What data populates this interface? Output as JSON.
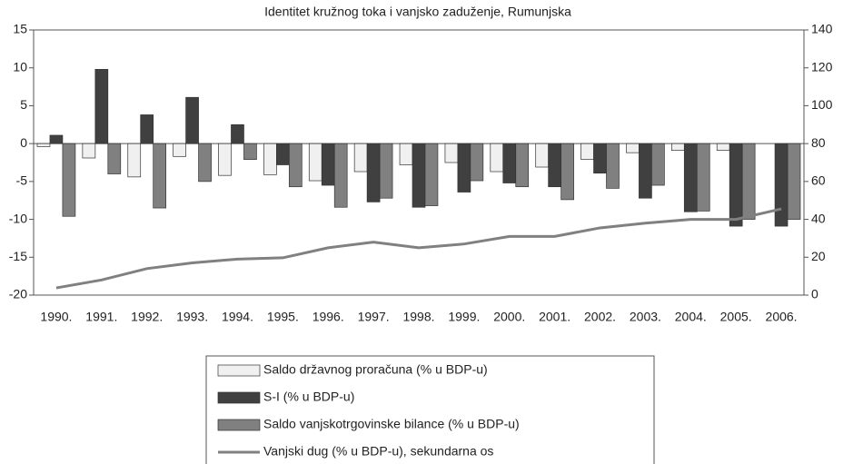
{
  "chart_data": {
    "type": "bar",
    "title": "Identitet kružnog toka i vanjsko zaduženje, Rumunjska",
    "categories": [
      "1990.",
      "1991.",
      "1992.",
      "1993.",
      "1994.",
      "1995.",
      "1996.",
      "1997.",
      "1998.",
      "1999.",
      "2000.",
      "2001.",
      "2002.",
      "2003.",
      "2004.",
      "2005.",
      "2006."
    ],
    "series": [
      {
        "name": "Saldo državnog proračuna (% u BDP-u)",
        "color": "#f0f0f0",
        "values": [
          -0.4,
          -1.9,
          -4.4,
          -1.7,
          -4.2,
          -4.1,
          -4.9,
          -3.7,
          -2.8,
          -2.5,
          -3.7,
          -3.1,
          -2.1,
          -1.2,
          -0.9,
          -0.9,
          0
        ]
      },
      {
        "name": "S-I (% u BDP-u)",
        "color": "#404040",
        "values": [
          1.1,
          9.8,
          3.8,
          6.1,
          2.5,
          -2.8,
          -5.5,
          -7.7,
          -8.4,
          -6.4,
          -5.2,
          -5.7,
          -3.9,
          -7.2,
          -9.0,
          -10.9,
          -10.9
        ]
      },
      {
        "name": "Saldo vanjskotrgovinske bilance (% u BDP-u)",
        "color": "#808080",
        "values": [
          -9.6,
          -4.0,
          -8.5,
          -5.0,
          -2.1,
          -5.7,
          -8.4,
          -7.2,
          -8.2,
          -4.9,
          -5.7,
          -7.4,
          -5.9,
          -5.5,
          -8.9,
          -10.0,
          -10.0
        ]
      },
      {
        "name": "Vanjski dug (% u BDP-u), sekundarna os",
        "color": "#808080",
        "type": "line",
        "axis": "y2",
        "values": [
          3.8,
          8,
          14,
          17,
          19,
          19.7,
          25,
          28,
          25,
          27,
          31,
          31,
          35.5,
          38,
          40,
          40,
          45.5
        ]
      }
    ],
    "ylim": [
      -20,
      15
    ],
    "yticks": [
      -20,
      -15,
      -10,
      -5,
      0,
      5,
      10,
      15
    ],
    "y2lim": [
      0,
      140
    ],
    "y2ticks": [
      0,
      20,
      40,
      60,
      80,
      100,
      120,
      140
    ],
    "legend": "bottom"
  }
}
